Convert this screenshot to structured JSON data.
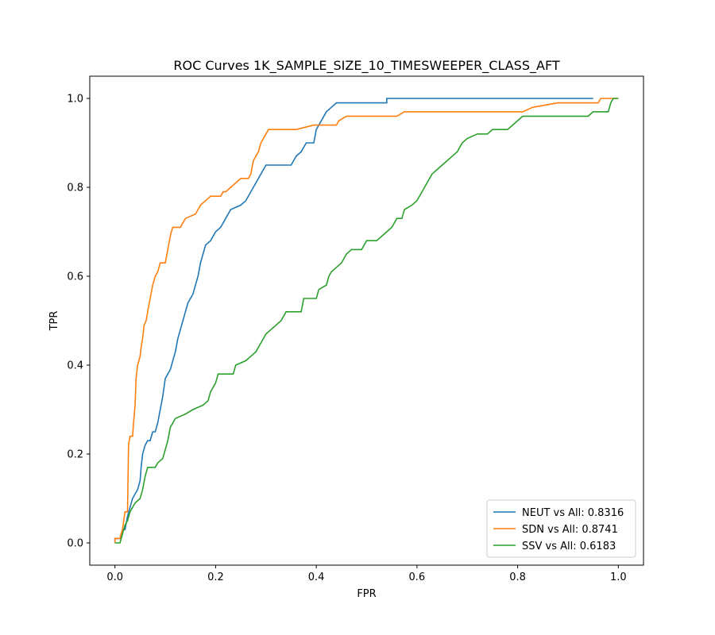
{
  "chart_data": {
    "type": "line",
    "title": "ROC Curves 1K_SAMPLE_SIZE_10_TIMESWEEPER_CLASS_AFT",
    "xlabel": "FPR",
    "ylabel": "TPR",
    "xlim": [
      -0.05,
      1.05
    ],
    "ylim": [
      -0.05,
      1.05
    ],
    "x_ticks": [
      0.0,
      0.2,
      0.4,
      0.6,
      0.8,
      1.0
    ],
    "y_ticks": [
      0.0,
      0.2,
      0.4,
      0.6,
      0.8,
      1.0
    ],
    "x_tick_labels": [
      "0.0",
      "0.2",
      "0.4",
      "0.6",
      "0.8",
      "1.0"
    ],
    "y_tick_labels": [
      "0.0",
      "0.2",
      "0.4",
      "0.6",
      "0.8",
      "1.0"
    ],
    "grid": false,
    "legend_position": "lower-right",
    "series": [
      {
        "name": "NEUT vs All: 0.8316",
        "color": "#1f77b4",
        "points": [
          [
            0.0,
            0.0
          ],
          [
            0.0,
            0.01
          ],
          [
            0.01,
            0.01
          ],
          [
            0.015,
            0.03
          ],
          [
            0.02,
            0.03
          ],
          [
            0.025,
            0.06
          ],
          [
            0.03,
            0.08
          ],
          [
            0.035,
            0.1
          ],
          [
            0.04,
            0.11
          ],
          [
            0.045,
            0.12
          ],
          [
            0.05,
            0.14
          ],
          [
            0.052,
            0.17
          ],
          [
            0.055,
            0.2
          ],
          [
            0.06,
            0.22
          ],
          [
            0.065,
            0.23
          ],
          [
            0.07,
            0.23
          ],
          [
            0.075,
            0.25
          ],
          [
            0.08,
            0.25
          ],
          [
            0.085,
            0.27
          ],
          [
            0.09,
            0.3
          ],
          [
            0.095,
            0.33
          ],
          [
            0.1,
            0.37
          ],
          [
            0.105,
            0.38
          ],
          [
            0.11,
            0.39
          ],
          [
            0.115,
            0.41
          ],
          [
            0.12,
            0.43
          ],
          [
            0.125,
            0.46
          ],
          [
            0.13,
            0.48
          ],
          [
            0.135,
            0.5
          ],
          [
            0.14,
            0.52
          ],
          [
            0.145,
            0.54
          ],
          [
            0.15,
            0.55
          ],
          [
            0.155,
            0.56
          ],
          [
            0.16,
            0.58
          ],
          [
            0.165,
            0.6
          ],
          [
            0.17,
            0.63
          ],
          [
            0.175,
            0.65
          ],
          [
            0.18,
            0.67
          ],
          [
            0.19,
            0.68
          ],
          [
            0.2,
            0.7
          ],
          [
            0.21,
            0.71
          ],
          [
            0.22,
            0.73
          ],
          [
            0.23,
            0.75
          ],
          [
            0.25,
            0.76
          ],
          [
            0.26,
            0.77
          ],
          [
            0.27,
            0.79
          ],
          [
            0.28,
            0.81
          ],
          [
            0.29,
            0.83
          ],
          [
            0.3,
            0.85
          ],
          [
            0.35,
            0.85
          ],
          [
            0.355,
            0.86
          ],
          [
            0.36,
            0.87
          ],
          [
            0.37,
            0.88
          ],
          [
            0.38,
            0.9
          ],
          [
            0.395,
            0.9
          ],
          [
            0.4,
            0.93
          ],
          [
            0.41,
            0.95
          ],
          [
            0.42,
            0.97
          ],
          [
            0.43,
            0.98
          ],
          [
            0.44,
            0.99
          ],
          [
            0.45,
            0.99
          ],
          [
            0.54,
            0.99
          ],
          [
            0.54,
            1.0
          ],
          [
            0.95,
            1.0
          ]
        ]
      },
      {
        "name": "SDN vs All: 0.8741",
        "color": "#ff7f0e",
        "points": [
          [
            0.0,
            0.0
          ],
          [
            0.0,
            0.01
          ],
          [
            0.01,
            0.01
          ],
          [
            0.012,
            0.02
          ],
          [
            0.015,
            0.03
          ],
          [
            0.02,
            0.07
          ],
          [
            0.025,
            0.07
          ],
          [
            0.027,
            0.22
          ],
          [
            0.03,
            0.24
          ],
          [
            0.035,
            0.24
          ],
          [
            0.037,
            0.27
          ],
          [
            0.04,
            0.31
          ],
          [
            0.042,
            0.37
          ],
          [
            0.045,
            0.4
          ],
          [
            0.05,
            0.42
          ],
          [
            0.052,
            0.44
          ],
          [
            0.055,
            0.46
          ],
          [
            0.058,
            0.49
          ],
          [
            0.062,
            0.5
          ],
          [
            0.065,
            0.52
          ],
          [
            0.07,
            0.55
          ],
          [
            0.075,
            0.58
          ],
          [
            0.08,
            0.6
          ],
          [
            0.085,
            0.61
          ],
          [
            0.09,
            0.63
          ],
          [
            0.1,
            0.63
          ],
          [
            0.105,
            0.66
          ],
          [
            0.11,
            0.69
          ],
          [
            0.112,
            0.7
          ],
          [
            0.115,
            0.71
          ],
          [
            0.13,
            0.71
          ],
          [
            0.135,
            0.72
          ],
          [
            0.14,
            0.73
          ],
          [
            0.16,
            0.74
          ],
          [
            0.165,
            0.75
          ],
          [
            0.17,
            0.76
          ],
          [
            0.18,
            0.77
          ],
          [
            0.19,
            0.78
          ],
          [
            0.21,
            0.78
          ],
          [
            0.215,
            0.79
          ],
          [
            0.22,
            0.79
          ],
          [
            0.23,
            0.8
          ],
          [
            0.24,
            0.81
          ],
          [
            0.25,
            0.82
          ],
          [
            0.265,
            0.82
          ],
          [
            0.27,
            0.83
          ],
          [
            0.275,
            0.86
          ],
          [
            0.28,
            0.87
          ],
          [
            0.285,
            0.88
          ],
          [
            0.29,
            0.9
          ],
          [
            0.3,
            0.92
          ],
          [
            0.305,
            0.93
          ],
          [
            0.36,
            0.93
          ],
          [
            0.395,
            0.94
          ],
          [
            0.44,
            0.94
          ],
          [
            0.445,
            0.95
          ],
          [
            0.46,
            0.96
          ],
          [
            0.56,
            0.96
          ],
          [
            0.575,
            0.97
          ],
          [
            0.81,
            0.97
          ],
          [
            0.83,
            0.98
          ],
          [
            0.88,
            0.99
          ],
          [
            0.96,
            0.99
          ],
          [
            0.965,
            1.0
          ],
          [
            1.0,
            1.0
          ]
        ]
      },
      {
        "name": "SSV vs All: 0.6183",
        "color": "#2ca02c",
        "points": [
          [
            0.0,
            0.0
          ],
          [
            0.01,
            0.0
          ],
          [
            0.015,
            0.02
          ],
          [
            0.02,
            0.04
          ],
          [
            0.025,
            0.05
          ],
          [
            0.03,
            0.07
          ],
          [
            0.035,
            0.08
          ],
          [
            0.04,
            0.09
          ],
          [
            0.05,
            0.1
          ],
          [
            0.055,
            0.12
          ],
          [
            0.06,
            0.15
          ],
          [
            0.065,
            0.17
          ],
          [
            0.08,
            0.17
          ],
          [
            0.085,
            0.18
          ],
          [
            0.095,
            0.19
          ],
          [
            0.1,
            0.21
          ],
          [
            0.105,
            0.23
          ],
          [
            0.11,
            0.26
          ],
          [
            0.115,
            0.27
          ],
          [
            0.12,
            0.28
          ],
          [
            0.14,
            0.29
          ],
          [
            0.155,
            0.3
          ],
          [
            0.175,
            0.31
          ],
          [
            0.185,
            0.32
          ],
          [
            0.19,
            0.34
          ],
          [
            0.2,
            0.36
          ],
          [
            0.205,
            0.38
          ],
          [
            0.235,
            0.38
          ],
          [
            0.24,
            0.4
          ],
          [
            0.26,
            0.41
          ],
          [
            0.27,
            0.42
          ],
          [
            0.28,
            0.43
          ],
          [
            0.29,
            0.45
          ],
          [
            0.3,
            0.47
          ],
          [
            0.31,
            0.48
          ],
          [
            0.32,
            0.49
          ],
          [
            0.33,
            0.5
          ],
          [
            0.34,
            0.52
          ],
          [
            0.37,
            0.52
          ],
          [
            0.375,
            0.55
          ],
          [
            0.4,
            0.55
          ],
          [
            0.405,
            0.57
          ],
          [
            0.42,
            0.58
          ],
          [
            0.425,
            0.6
          ],
          [
            0.43,
            0.61
          ],
          [
            0.44,
            0.62
          ],
          [
            0.45,
            0.63
          ],
          [
            0.46,
            0.65
          ],
          [
            0.47,
            0.66
          ],
          [
            0.49,
            0.66
          ],
          [
            0.5,
            0.68
          ],
          [
            0.52,
            0.68
          ],
          [
            0.54,
            0.7
          ],
          [
            0.55,
            0.71
          ],
          [
            0.56,
            0.73
          ],
          [
            0.57,
            0.73
          ],
          [
            0.575,
            0.75
          ],
          [
            0.59,
            0.76
          ],
          [
            0.6,
            0.77
          ],
          [
            0.61,
            0.79
          ],
          [
            0.62,
            0.81
          ],
          [
            0.63,
            0.83
          ],
          [
            0.64,
            0.84
          ],
          [
            0.65,
            0.85
          ],
          [
            0.66,
            0.86
          ],
          [
            0.67,
            0.87
          ],
          [
            0.68,
            0.88
          ],
          [
            0.69,
            0.9
          ],
          [
            0.7,
            0.91
          ],
          [
            0.72,
            0.92
          ],
          [
            0.74,
            0.92
          ],
          [
            0.75,
            0.93
          ],
          [
            0.78,
            0.93
          ],
          [
            0.79,
            0.94
          ],
          [
            0.8,
            0.95
          ],
          [
            0.81,
            0.96
          ],
          [
            0.94,
            0.96
          ],
          [
            0.95,
            0.97
          ],
          [
            0.98,
            0.97
          ],
          [
            0.985,
            0.99
          ],
          [
            0.99,
            1.0
          ],
          [
            1.0,
            1.0
          ]
        ]
      }
    ]
  }
}
